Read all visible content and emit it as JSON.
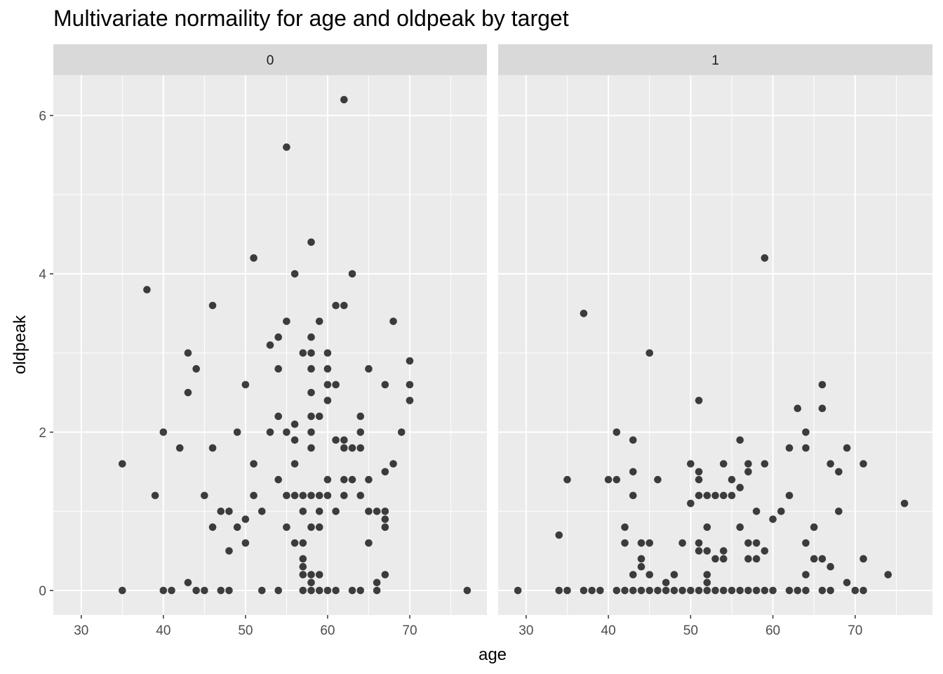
{
  "chart_data": {
    "type": "scatter",
    "title": "Multivariate normaility for age and oldpeak by target",
    "xlabel": "age",
    "ylabel": "oldpeak",
    "xlim": [
      26.6,
      79.4
    ],
    "ylim": [
      -0.31,
      6.51
    ],
    "x_ticks": [
      30,
      40,
      50,
      60,
      70
    ],
    "y_ticks": [
      0,
      2,
      4,
      6
    ],
    "grid": true,
    "facets": [
      {
        "label": "0",
        "points": [
          [
            35,
            1.6
          ],
          [
            35,
            0
          ],
          [
            38,
            3.8
          ],
          [
            39,
            1.2
          ],
          [
            40,
            2
          ],
          [
            40,
            0
          ],
          [
            41,
            0
          ],
          [
            42,
            1.8
          ],
          [
            43,
            3
          ],
          [
            43,
            2.5
          ],
          [
            43,
            0.1
          ],
          [
            44,
            2.8
          ],
          [
            44,
            0
          ],
          [
            45,
            1.2
          ],
          [
            45,
            0
          ],
          [
            46,
            3.6
          ],
          [
            46,
            1.8
          ],
          [
            46,
            0.8
          ],
          [
            47,
            1
          ],
          [
            47,
            0
          ],
          [
            48,
            1
          ],
          [
            48,
            0.5
          ],
          [
            48,
            0
          ],
          [
            49,
            2
          ],
          [
            49,
            0.8
          ],
          [
            50,
            2.6
          ],
          [
            50,
            0.9
          ],
          [
            50,
            0.6
          ],
          [
            51,
            4.2
          ],
          [
            51,
            1.6
          ],
          [
            51,
            1.2
          ],
          [
            52,
            1
          ],
          [
            52,
            0
          ],
          [
            53,
            3.1
          ],
          [
            53,
            2
          ],
          [
            54,
            3.2
          ],
          [
            54,
            2.8
          ],
          [
            54,
            2.2
          ],
          [
            54,
            1.4
          ],
          [
            54,
            0
          ],
          [
            55,
            5.6
          ],
          [
            55,
            3.4
          ],
          [
            55,
            2
          ],
          [
            55,
            1.2
          ],
          [
            55,
            0.8
          ],
          [
            56,
            4
          ],
          [
            56,
            2.1
          ],
          [
            56,
            1.9
          ],
          [
            56,
            1.6
          ],
          [
            56,
            1.2
          ],
          [
            56,
            0.6
          ],
          [
            57,
            3
          ],
          [
            57,
            1.2
          ],
          [
            57,
            1
          ],
          [
            57,
            0.6
          ],
          [
            57,
            0.4
          ],
          [
            57,
            0.3
          ],
          [
            57,
            0.2
          ],
          [
            57,
            0
          ],
          [
            58,
            4.4
          ],
          [
            58,
            3.2
          ],
          [
            58,
            3
          ],
          [
            58,
            2.8
          ],
          [
            58,
            2.5
          ],
          [
            58,
            2.2
          ],
          [
            58,
            2
          ],
          [
            58,
            1.8
          ],
          [
            58,
            1.2
          ],
          [
            58,
            0.8
          ],
          [
            58,
            0.2
          ],
          [
            58,
            0.1
          ],
          [
            58,
            0
          ],
          [
            59,
            3.4
          ],
          [
            59,
            2.2
          ],
          [
            59,
            1.2
          ],
          [
            59,
            1
          ],
          [
            59,
            0.8
          ],
          [
            59,
            0.2
          ],
          [
            59,
            0
          ],
          [
            60,
            3
          ],
          [
            60,
            2.8
          ],
          [
            60,
            2.6
          ],
          [
            60,
            2.4
          ],
          [
            60,
            1.4
          ],
          [
            60,
            1.2
          ],
          [
            60,
            0
          ],
          [
            61,
            3.6
          ],
          [
            61,
            2.6
          ],
          [
            61,
            1.9
          ],
          [
            61,
            1
          ],
          [
            61,
            0
          ],
          [
            62,
            6.2
          ],
          [
            62,
            3.6
          ],
          [
            62,
            1.9
          ],
          [
            62,
            1.8
          ],
          [
            62,
            1.4
          ],
          [
            62,
            1.2
          ],
          [
            63,
            4
          ],
          [
            63,
            1.8
          ],
          [
            63,
            1.4
          ],
          [
            63,
            0
          ],
          [
            64,
            2.2
          ],
          [
            64,
            2
          ],
          [
            64,
            1.8
          ],
          [
            64,
            1.2
          ],
          [
            64,
            0
          ],
          [
            65,
            2.8
          ],
          [
            65,
            1.4
          ],
          [
            65,
            1
          ],
          [
            65,
            0.6
          ],
          [
            66,
            1
          ],
          [
            66,
            0.1
          ],
          [
            66,
            0
          ],
          [
            67,
            2.6
          ],
          [
            67,
            1.5
          ],
          [
            67,
            1
          ],
          [
            67,
            0.9
          ],
          [
            67,
            0.8
          ],
          [
            67,
            0.2
          ],
          [
            68,
            3.4
          ],
          [
            68,
            1.6
          ],
          [
            69,
            2
          ],
          [
            70,
            2.9
          ],
          [
            70,
            2.6
          ],
          [
            70,
            2.4
          ],
          [
            77,
            0
          ]
        ]
      },
      {
        "label": "1",
        "points": [
          [
            29,
            0
          ],
          [
            34,
            0.7
          ],
          [
            34,
            0
          ],
          [
            35,
            1.4
          ],
          [
            35,
            0
          ],
          [
            37,
            3.5
          ],
          [
            37,
            0
          ],
          [
            38,
            0
          ],
          [
            39,
            0
          ],
          [
            40,
            1.4
          ],
          [
            41,
            2
          ],
          [
            41,
            1.4
          ],
          [
            41,
            0
          ],
          [
            42,
            0.8
          ],
          [
            42,
            0.6
          ],
          [
            42,
            0
          ],
          [
            43,
            1.9
          ],
          [
            43,
            1.5
          ],
          [
            43,
            1.2
          ],
          [
            43,
            0.2
          ],
          [
            43,
            0
          ],
          [
            44,
            0.6
          ],
          [
            44,
            0.4
          ],
          [
            44,
            0.3
          ],
          [
            44,
            0
          ],
          [
            45,
            3
          ],
          [
            45,
            0.6
          ],
          [
            45,
            0.2
          ],
          [
            45,
            0
          ],
          [
            46,
            1.4
          ],
          [
            46,
            0
          ],
          [
            47,
            0.1
          ],
          [
            47,
            0
          ],
          [
            48,
            0.2
          ],
          [
            48,
            0
          ],
          [
            49,
            0.6
          ],
          [
            49,
            0
          ],
          [
            50,
            1.6
          ],
          [
            50,
            1.1
          ],
          [
            50,
            0
          ],
          [
            51,
            2.4
          ],
          [
            51,
            1.5
          ],
          [
            51,
            1.4
          ],
          [
            51,
            1.2
          ],
          [
            51,
            0.6
          ],
          [
            51,
            0.5
          ],
          [
            51,
            0
          ],
          [
            52,
            1.2
          ],
          [
            52,
            0.8
          ],
          [
            52,
            0.5
          ],
          [
            52,
            0.2
          ],
          [
            52,
            0.1
          ],
          [
            52,
            0
          ],
          [
            53,
            1.2
          ],
          [
            53,
            0.4
          ],
          [
            53,
            0
          ],
          [
            54,
            1.6
          ],
          [
            54,
            1.2
          ],
          [
            54,
            0.5
          ],
          [
            54,
            0.4
          ],
          [
            54,
            0
          ],
          [
            55,
            1.4
          ],
          [
            55,
            1.2
          ],
          [
            55,
            0
          ],
          [
            56,
            1.9
          ],
          [
            56,
            1.3
          ],
          [
            56,
            0.8
          ],
          [
            56,
            0
          ],
          [
            57,
            1.6
          ],
          [
            57,
            1.5
          ],
          [
            57,
            0.6
          ],
          [
            57,
            0.4
          ],
          [
            57,
            0
          ],
          [
            58,
            1
          ],
          [
            58,
            0.6
          ],
          [
            58,
            0.4
          ],
          [
            58,
            0
          ],
          [
            59,
            4.2
          ],
          [
            59,
            1.6
          ],
          [
            59,
            0.5
          ],
          [
            59,
            0
          ],
          [
            60,
            0.9
          ],
          [
            60,
            0
          ],
          [
            61,
            1
          ],
          [
            62,
            1.8
          ],
          [
            62,
            1.2
          ],
          [
            62,
            0
          ],
          [
            63,
            2.3
          ],
          [
            63,
            0
          ],
          [
            64,
            2
          ],
          [
            64,
            1.8
          ],
          [
            64,
            0.6
          ],
          [
            64,
            0.2
          ],
          [
            64,
            0
          ],
          [
            65,
            0.8
          ],
          [
            65,
            0.4
          ],
          [
            66,
            2.6
          ],
          [
            66,
            2.3
          ],
          [
            66,
            0.4
          ],
          [
            66,
            0
          ],
          [
            67,
            1.6
          ],
          [
            67,
            0.3
          ],
          [
            67,
            0
          ],
          [
            68,
            1.5
          ],
          [
            68,
            1
          ],
          [
            69,
            1.8
          ],
          [
            69,
            0.1
          ],
          [
            70,
            0
          ],
          [
            71,
            1.6
          ],
          [
            71,
            0.4
          ],
          [
            71,
            0
          ],
          [
            74,
            0.2
          ],
          [
            76,
            1.1
          ]
        ]
      }
    ]
  }
}
